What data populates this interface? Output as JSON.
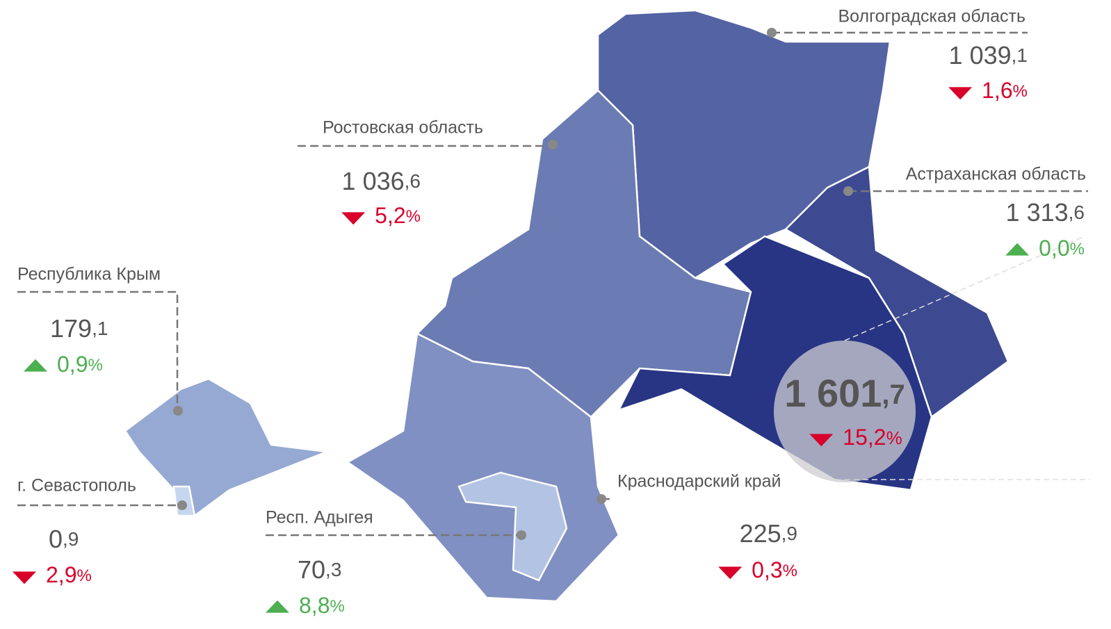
{
  "regions": [
    {
      "name": "Волгоградская область",
      "value": "1 039,1",
      "change": "1,6%",
      "trend": "down"
    },
    {
      "name": "Ростовская область",
      "value": "1 036,6",
      "change": "5,2%",
      "trend": "down"
    },
    {
      "name": "Астраханская область",
      "value": "1 313,6",
      "change": "0,0%",
      "trend": "up"
    },
    {
      "name": "Республика Крым",
      "value": "179,1",
      "change": "0,9%",
      "trend": "up"
    },
    {
      "name": "г. Севастополь",
      "value": "0,9",
      "change": "2,9%",
      "trend": "down"
    },
    {
      "name": "Респ. Адыгея",
      "value": "70,3",
      "change": "8,8%",
      "trend": "up"
    },
    {
      "name": "Краснодарский край",
      "value": "225,9",
      "change": "0,3%",
      "trend": "down"
    }
  ],
  "highlight": {
    "value": "1 601,7",
    "change": "15,2%",
    "trend": "down"
  }
}
